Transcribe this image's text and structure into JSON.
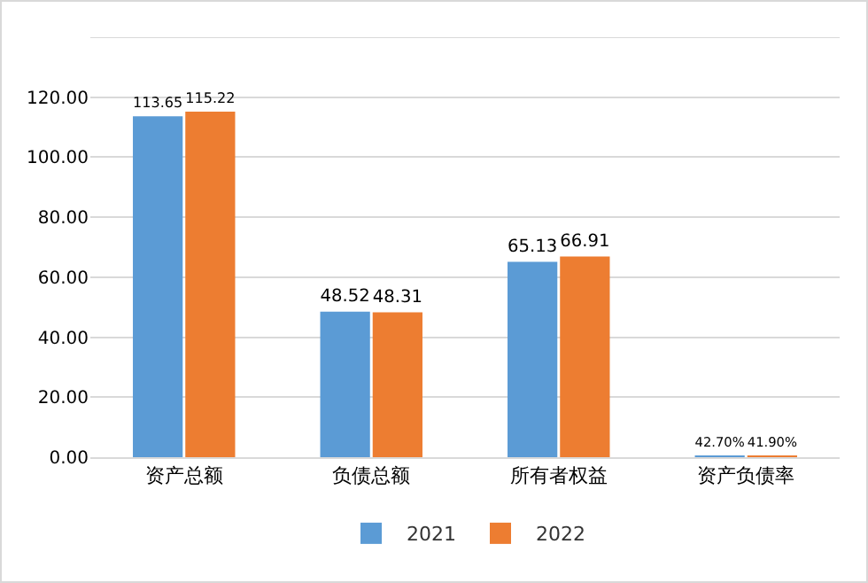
{
  "chart_data": {
    "type": "bar",
    "categories": [
      "资产总额",
      "负债总额",
      "所有者权益",
      "资产负债率"
    ],
    "series": [
      {
        "name": "2021",
        "color": "#5b9bd5",
        "values": [
          113.65,
          48.52,
          65.13,
          0.427
        ],
        "value_labels": [
          "113.65",
          "48.52",
          "65.13",
          "42.70%"
        ]
      },
      {
        "name": "2022",
        "color": "#ed7d31",
        "values": [
          115.22,
          48.31,
          66.91,
          0.419
        ],
        "value_labels": [
          "115.22",
          "48.31",
          "66.91",
          "41.90%"
        ]
      }
    ],
    "ylim": [
      0,
      140
    ],
    "yticks": [
      {
        "value": 0,
        "label": "0.00"
      },
      {
        "value": 20,
        "label": "20.00"
      },
      {
        "value": 40,
        "label": "40.00"
      },
      {
        "value": 60,
        "label": "60.00"
      },
      {
        "value": 80,
        "label": "80.00"
      },
      {
        "value": 100,
        "label": "100.00"
      },
      {
        "value": 120,
        "label": "120.00"
      },
      {
        "value": 140,
        "label": null
      }
    ],
    "grid": "y",
    "legend": "bottom"
  }
}
